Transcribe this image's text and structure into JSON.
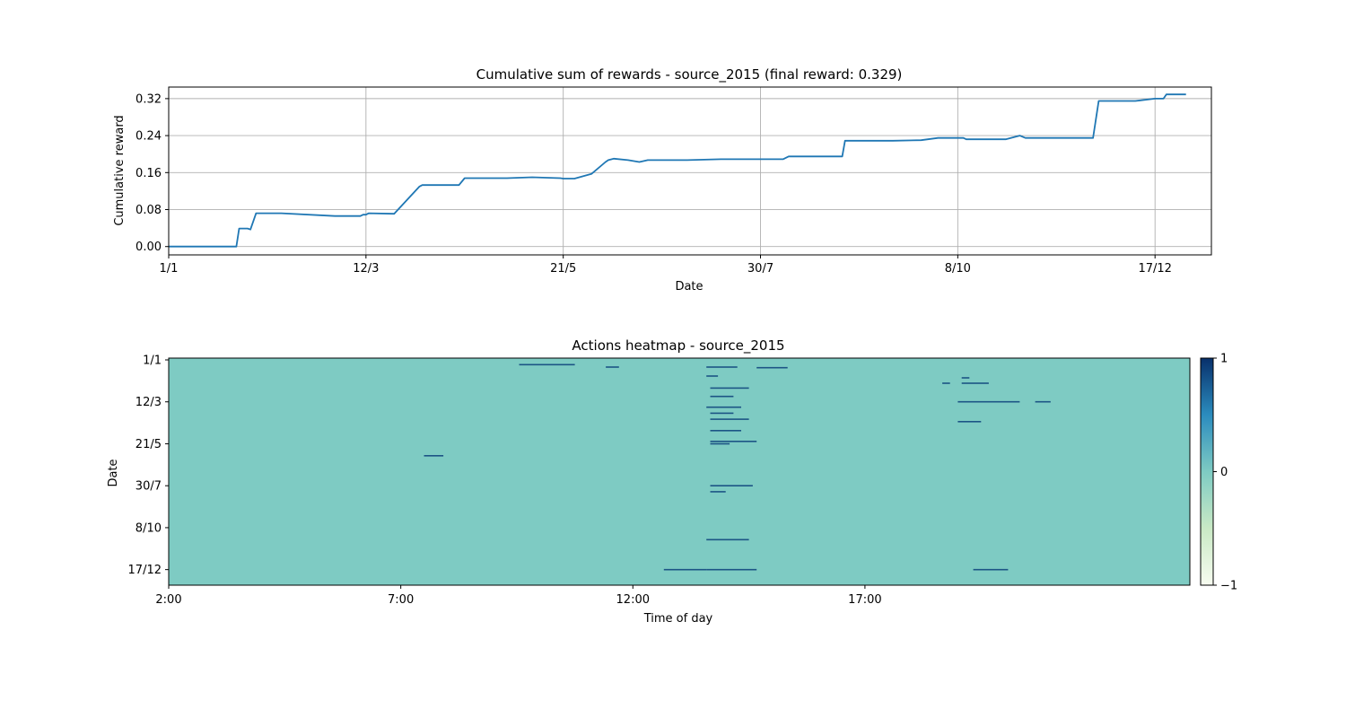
{
  "chart_data": [
    {
      "type": "line",
      "title": "Cumulative sum of rewards - source_2015 (final reward: 0.329)",
      "xlabel": "Date",
      "ylabel": "Cumulative reward",
      "xticks": [
        "1/1",
        "12/3",
        "21/5",
        "30/7",
        "8/10",
        "17/12"
      ],
      "yticks": [
        "0.00",
        "0.08",
        "0.16",
        "0.24",
        "0.32"
      ],
      "ylim": [
        -0.018,
        0.345
      ],
      "grid": true,
      "line_color": "#1f77b4",
      "series": [
        {
          "x": [
            "1/1",
            "14/1",
            "25/1",
            "26/1",
            "29/1",
            "30/1",
            "1/2",
            "10/2",
            "1/3",
            "10/3",
            "11/3",
            "12/3",
            "13/3",
            "22/3",
            "31/3",
            "1/4",
            "7/4",
            "14/4",
            "16/4",
            "1/5",
            "10/5",
            "20/5",
            "21/5",
            "25/5",
            "31/5",
            "5/6",
            "6/6",
            "8/6",
            "13/6",
            "17/6",
            "20/6",
            "1/7",
            "4/7",
            "16/7",
            "1/8",
            "7/8",
            "9/8",
            "18/8",
            "28/8",
            "29/8",
            "30/8",
            "1/9",
            "15/9",
            "25/9",
            "1/10",
            "10/10",
            "11/10",
            "20/10",
            "25/10",
            "30/10",
            "1/11",
            "6/11",
            "10/11",
            "25/11",
            "27/11",
            "1/12",
            "10/12",
            "17/12",
            "20/12",
            "21/12",
            "28/12"
          ],
          "y": [
            0.0,
            0.0,
            0.0,
            0.039,
            0.039,
            0.037,
            0.072,
            0.072,
            0.066,
            0.066,
            0.069,
            0.069,
            0.072,
            0.071,
            0.13,
            0.133,
            0.133,
            0.133,
            0.148,
            0.148,
            0.15,
            0.148,
            0.147,
            0.147,
            0.157,
            0.183,
            0.187,
            0.19,
            0.187,
            0.183,
            0.187,
            0.187,
            0.187,
            0.189,
            0.189,
            0.189,
            0.195,
            0.195,
            0.195,
            0.229,
            0.229,
            0.229,
            0.229,
            0.23,
            0.235,
            0.235,
            0.232,
            0.232,
            0.232,
            0.24,
            0.235,
            0.235,
            0.235,
            0.235,
            0.315,
            0.315,
            0.315,
            0.32,
            0.32,
            0.329,
            0.329
          ]
        }
      ]
    },
    {
      "type": "heatmap",
      "title": "Actions heatmap - source_2015",
      "xlabel": "Time of day",
      "ylabel": "Date",
      "xticks": [
        "2:00",
        "7:00",
        "12:00",
        "17:00"
      ],
      "yticks": [
        "1/1",
        "12/3",
        "21/5",
        "30/7",
        "8/10",
        "17/12"
      ],
      "colorbar_ticks": [
        "1",
        "0",
        "−1"
      ],
      "value_range": [
        -1,
        1
      ],
      "background_value": 0,
      "colors": {
        "background": "#7ecbc3",
        "positive": "#0b3f7a",
        "high": "#08306b",
        "mid": "#52a7c6",
        "low": "#c9e9c5",
        "min": "#f7fcf0"
      },
      "events": [
        {
          "t": "9:33",
          "t_end": "10:45",
          "date": "9/1"
        },
        {
          "t": "11:25",
          "t_end": "11:42",
          "date": "13/1"
        },
        {
          "t": "13:35",
          "t_end": "14:15",
          "date": "13/1"
        },
        {
          "t": "14:40",
          "t_end": "15:20",
          "date": "14/1"
        },
        {
          "t": "13:35",
          "t_end": "13:50",
          "date": "28/1"
        },
        {
          "t": "19:05",
          "t_end": "19:15",
          "date": "31/1"
        },
        {
          "t": "18:40",
          "t_end": "18:50",
          "date": "9/2"
        },
        {
          "t": "19:05",
          "t_end": "19:40",
          "date": "9/2"
        },
        {
          "t": "13:40",
          "t_end": "14:30",
          "date": "17/2"
        },
        {
          "t": "13:40",
          "t_end": "14:10",
          "date": "3/3"
        },
        {
          "t": "19:00",
          "t_end": "20:20",
          "date": "12/3"
        },
        {
          "t": "20:40",
          "t_end": "21:00",
          "date": "12/3"
        },
        {
          "t": "13:35",
          "t_end": "14:20",
          "date": "21/3"
        },
        {
          "t": "13:40",
          "t_end": "14:10",
          "date": "31/3"
        },
        {
          "t": "13:40",
          "t_end": "14:30",
          "date": "10/4"
        },
        {
          "t": "19:00",
          "t_end": "19:30",
          "date": "14/4"
        },
        {
          "t": "13:40",
          "t_end": "14:20",
          "date": "29/4"
        },
        {
          "t": "13:40",
          "t_end": "14:40",
          "date": "17/5"
        },
        {
          "t": "13:40",
          "t_end": "14:05",
          "date": "21/5"
        },
        {
          "t": "7:30",
          "t_end": "7:55",
          "date": "10/6"
        },
        {
          "t": "13:40",
          "t_end": "14:00",
          "date": "9/8"
        },
        {
          "t": "13:40",
          "t_end": "14:35",
          "date": "30/7"
        },
        {
          "t": "13:35",
          "t_end": "14:30",
          "date": "28/10"
        },
        {
          "t": "12:40",
          "t_end": "13:35",
          "date": "17/12"
        },
        {
          "t": "13:35",
          "t_end": "14:40",
          "date": "17/12"
        },
        {
          "t": "19:20",
          "t_end": "20:05",
          "date": "17/12"
        }
      ]
    }
  ]
}
